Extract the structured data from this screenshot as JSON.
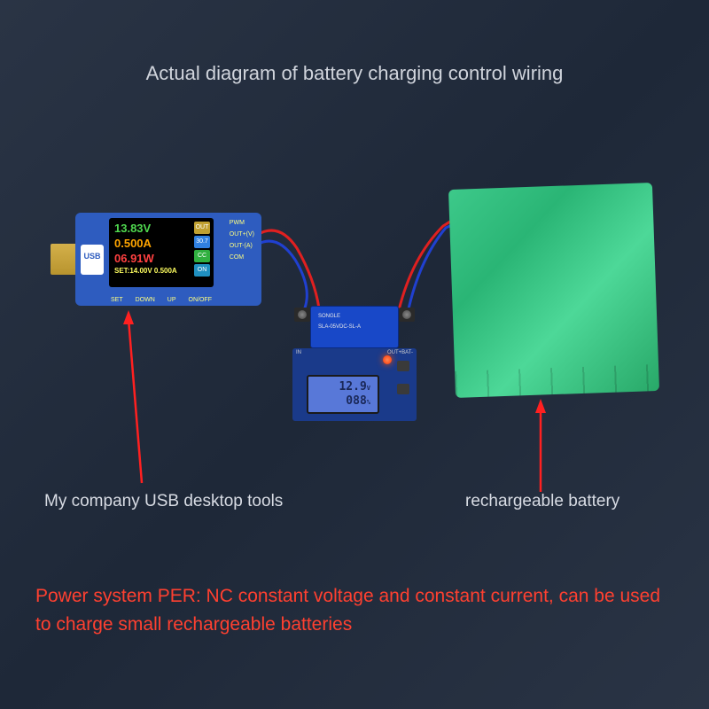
{
  "title": "Actual diagram of battery charging control wiring",
  "usb_tool": {
    "badge": "USB",
    "screen": {
      "voltage": "13.83V",
      "current": "0.500A",
      "power": "06.91W",
      "set_line": "SET:14.00V 0.500A",
      "mini_badges": [
        {
          "text": "OUT",
          "bg": "#c0a030"
        },
        {
          "text": "30.7",
          "bg": "#3080e0"
        },
        {
          "text": "CC",
          "bg": "#30b040"
        },
        {
          "text": "ON",
          "bg": "#2090c0"
        }
      ]
    },
    "side_labels": [
      "PWM",
      "OUT+(V)",
      "OUT-(A)",
      "COM"
    ],
    "bottom_labels": [
      "SET",
      "DOWN",
      "UP",
      "ON/OFF"
    ],
    "caption": "My company USB desktop tools"
  },
  "ctrl_module": {
    "relay_brand": "SONGLE",
    "relay_model": "SLA-05VDC-SL-A",
    "pcb_labels": {
      "left": "IN",
      "right": "OUT+BAT-"
    },
    "lcd": {
      "voltage": "12.9",
      "voltage_unit": "V",
      "percent": "088",
      "percent_unit": "%"
    }
  },
  "battery": {
    "caption": "rechargeable battery"
  },
  "footer": "Power system PER: NC constant voltage and constant current, can be used to charge small rechargeable batteries",
  "colors": {
    "wire_red": "#e02020",
    "wire_blue": "#2040d0",
    "arrow": "#ff2020"
  }
}
